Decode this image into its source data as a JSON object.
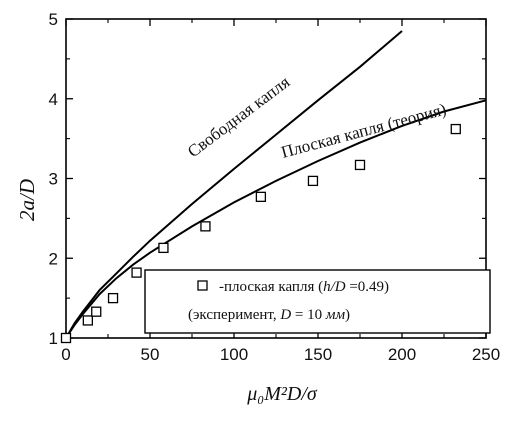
{
  "chart_data": {
    "type": "line",
    "title": "",
    "xlabel": "μ₀M²D/σ",
    "ylabel": "2a/D",
    "xlim": [
      0,
      250
    ],
    "ylim": [
      1,
      5
    ],
    "x_ticks": [
      "0",
      "50",
      "100",
      "150",
      "200",
      "250"
    ],
    "y_ticks": [
      "1",
      "2",
      "3",
      "4",
      "5"
    ],
    "grid": false,
    "series": [
      {
        "name": "Свободная капля",
        "type": "line",
        "color": "#000000",
        "x": [
          0,
          5,
          10,
          20,
          30,
          40,
          50,
          75,
          100,
          125,
          150,
          175,
          200
        ],
        "y": [
          1.0,
          1.18,
          1.33,
          1.6,
          1.81,
          2.02,
          2.22,
          2.68,
          3.12,
          3.55,
          3.98,
          4.4,
          4.85
        ]
      },
      {
        "name": "Плоская капля (теория)",
        "type": "line",
        "color": "#000000",
        "x": [
          0,
          5,
          10,
          20,
          30,
          40,
          50,
          75,
          100,
          125,
          150,
          175,
          200,
          225,
          250
        ],
        "y": [
          1.0,
          1.16,
          1.3,
          1.55,
          1.75,
          1.92,
          2.07,
          2.4,
          2.7,
          2.97,
          3.22,
          3.45,
          3.66,
          3.84,
          3.98
        ]
      },
      {
        "name": "-плоская капля (h/D =0.49) (эксперимент, D = 10 мм)",
        "type": "scatter",
        "marker": "square-open",
        "color": "#000000",
        "x": [
          0,
          13,
          18,
          28,
          42,
          58,
          83,
          116,
          147,
          175,
          232
        ],
        "y": [
          1.0,
          1.22,
          1.33,
          1.5,
          1.82,
          2.13,
          2.4,
          2.77,
          2.97,
          3.17,
          3.62
        ]
      }
    ],
    "annotations": [
      "Свободная капля",
      "Плоская капля (теория)"
    ],
    "legend": {
      "line1_text": "-плоская капля (",
      "line1_var": "h/D",
      "line1_tail": " =0.49)",
      "line2_text": "(эксперимент, ",
      "line2_var": "D",
      "line2_tail": " = 10 ",
      "line2_unit": "мм",
      "line2_close": ")",
      "placement": "bottom-right"
    }
  }
}
